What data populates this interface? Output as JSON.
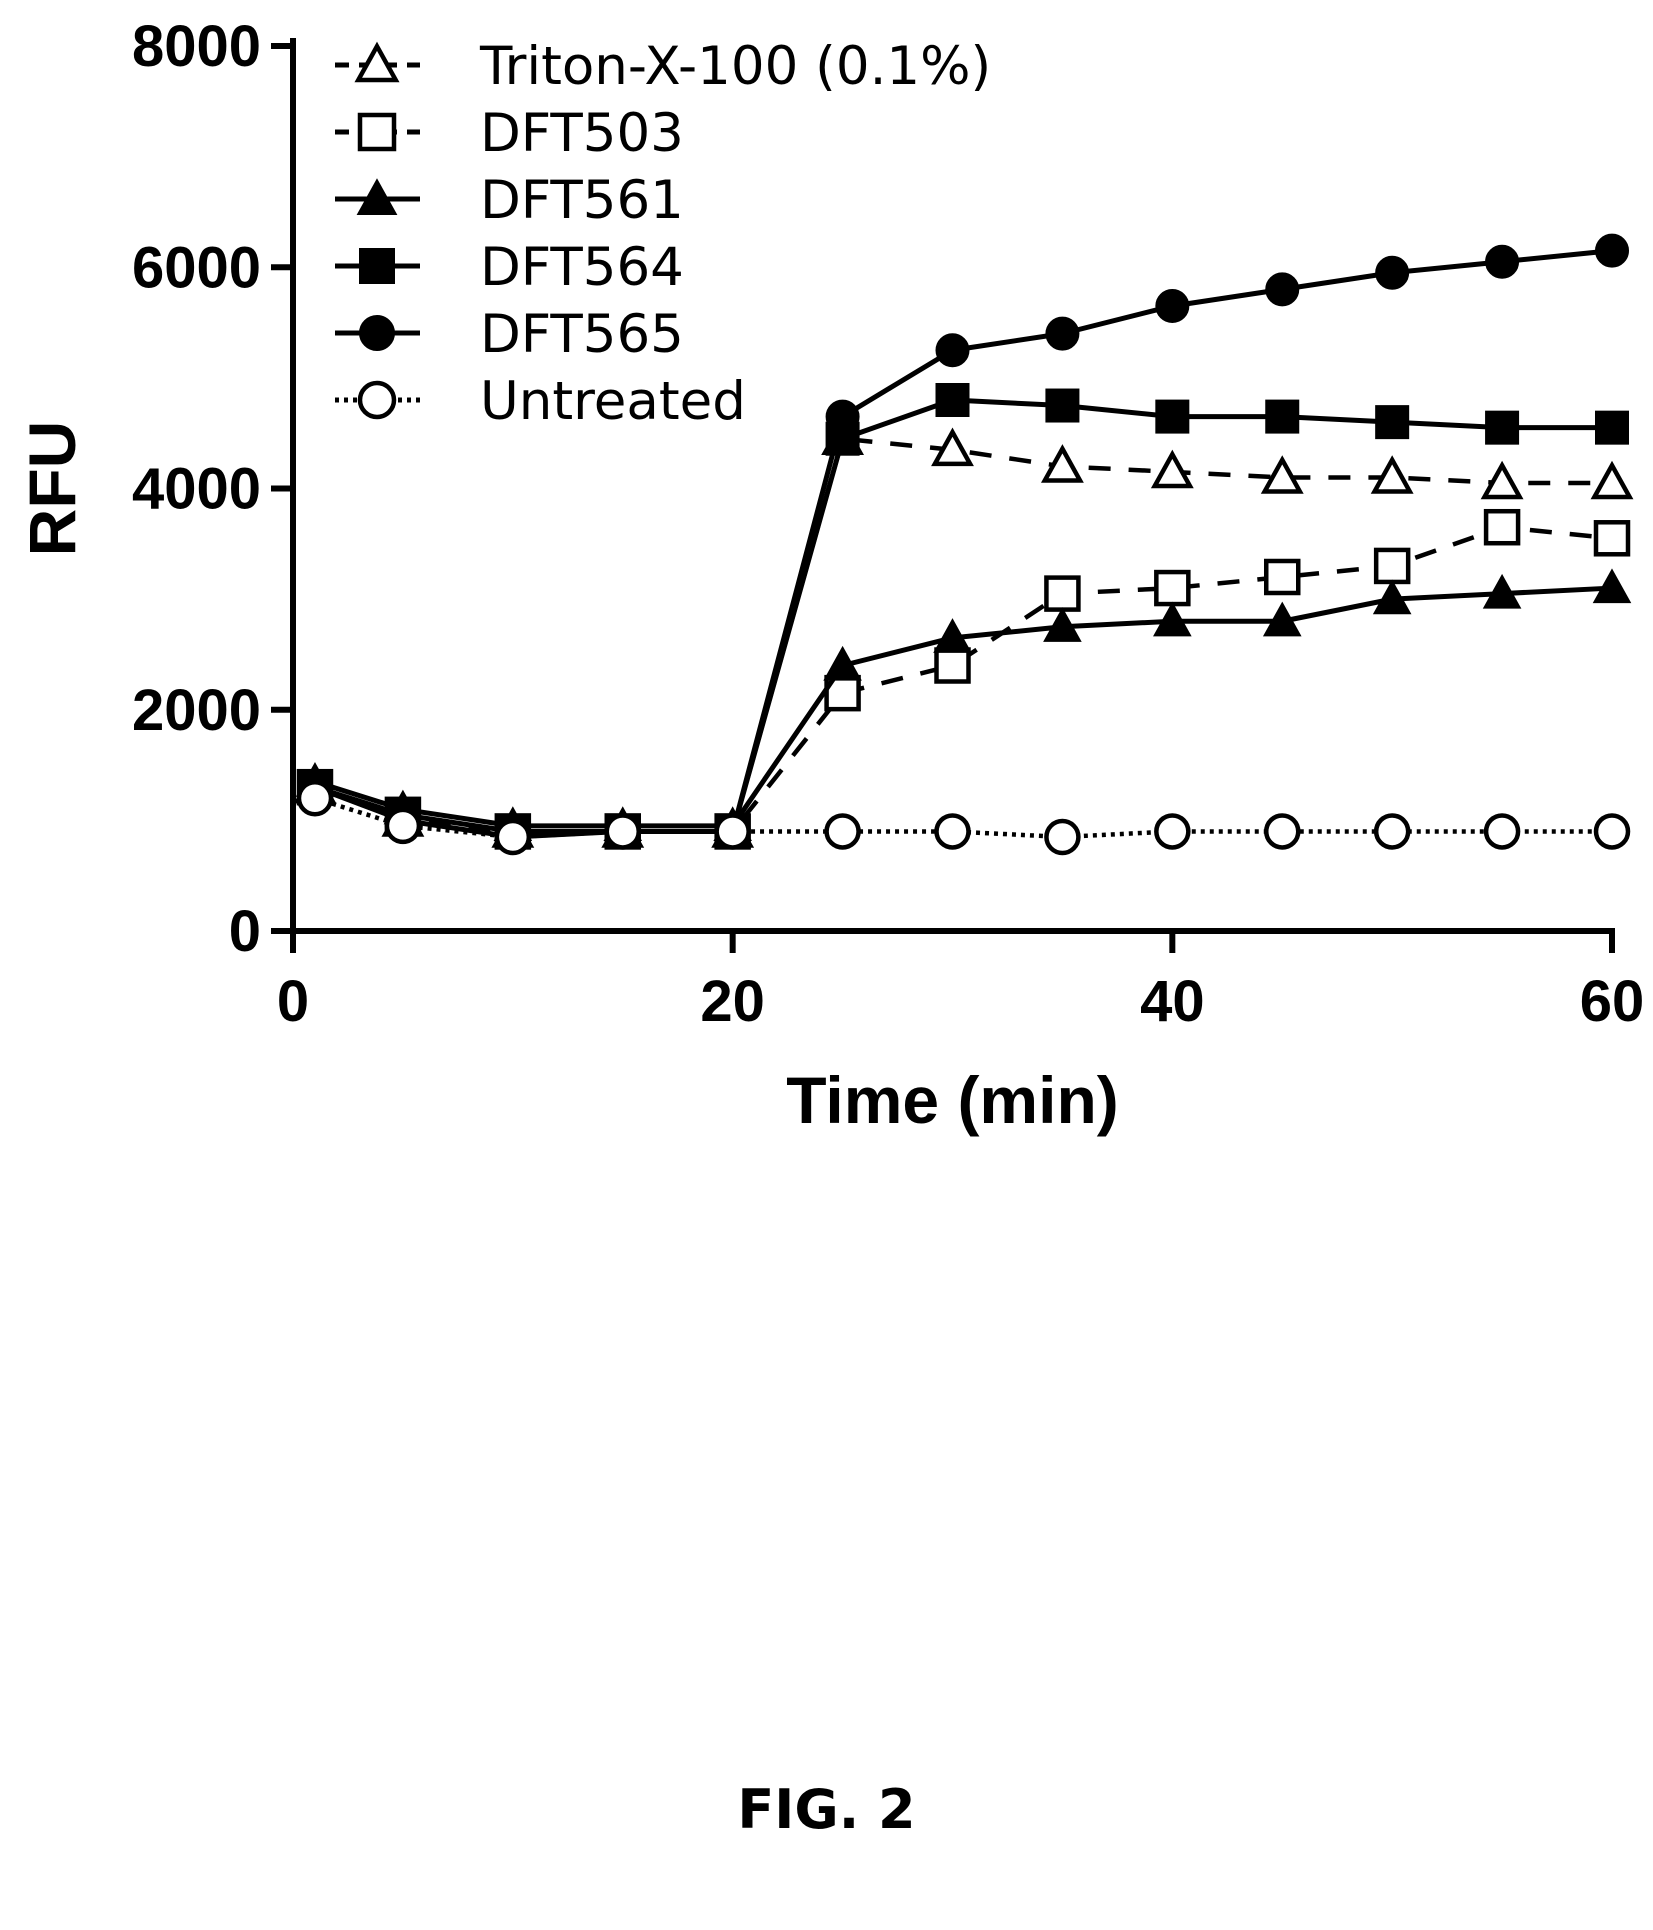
{
  "chart_data": {
    "type": "line",
    "xlabel": "Time (min)",
    "ylabel": "RFU",
    "xlim": [
      0,
      60
    ],
    "ylim": [
      0,
      8000
    ],
    "xticks": [
      "0",
      "20",
      "40",
      "60"
    ],
    "yticks": [
      "0",
      "2000",
      "4000",
      "6000",
      "8000"
    ],
    "grid": false,
    "legend_position": "top-left",
    "x": [
      1,
      5,
      10,
      15,
      20,
      25,
      30,
      35,
      40,
      45,
      50,
      55,
      60
    ],
    "series": [
      {
        "name": "Triton-X-100 (0.1%)",
        "marker": "triangle-open",
        "line": "dashed",
        "values": [
          1300,
          1000,
          900,
          900,
          900,
          4450,
          4350,
          4200,
          4150,
          4100,
          4100,
          4050,
          4050
        ]
      },
      {
        "name": "DFT503",
        "marker": "square-open",
        "line": "dashed",
        "values": [
          1300,
          1050,
          900,
          900,
          900,
          2150,
          2400,
          3050,
          3100,
          3200,
          3300,
          3650,
          3550
        ]
      },
      {
        "name": "DFT561",
        "marker": "triangle-filled",
        "line": "solid",
        "values": [
          1350,
          1100,
          950,
          950,
          950,
          2400,
          2650,
          2750,
          2800,
          2800,
          3000,
          3050,
          3100
        ]
      },
      {
        "name": "DFT564",
        "marker": "square-filled",
        "line": "solid",
        "values": [
          1300,
          1050,
          900,
          900,
          900,
          4450,
          4800,
          4750,
          4650,
          4650,
          4600,
          4550,
          4550
        ]
      },
      {
        "name": "DFT565",
        "marker": "circle-filled",
        "line": "solid",
        "values": [
          1300,
          1000,
          850,
          900,
          900,
          4650,
          5250,
          5400,
          5650,
          5800,
          5950,
          6050,
          6150
        ]
      },
      {
        "name": "Untreated",
        "marker": "circle-open",
        "line": "dotted",
        "values": [
          1200,
          950,
          850,
          900,
          900,
          900,
          900,
          850,
          900,
          900,
          900,
          900,
          900
        ]
      }
    ]
  },
  "figure": {
    "caption": "FIG. 2"
  },
  "colors": {
    "ink": "#000000",
    "background": "#ffffff"
  }
}
